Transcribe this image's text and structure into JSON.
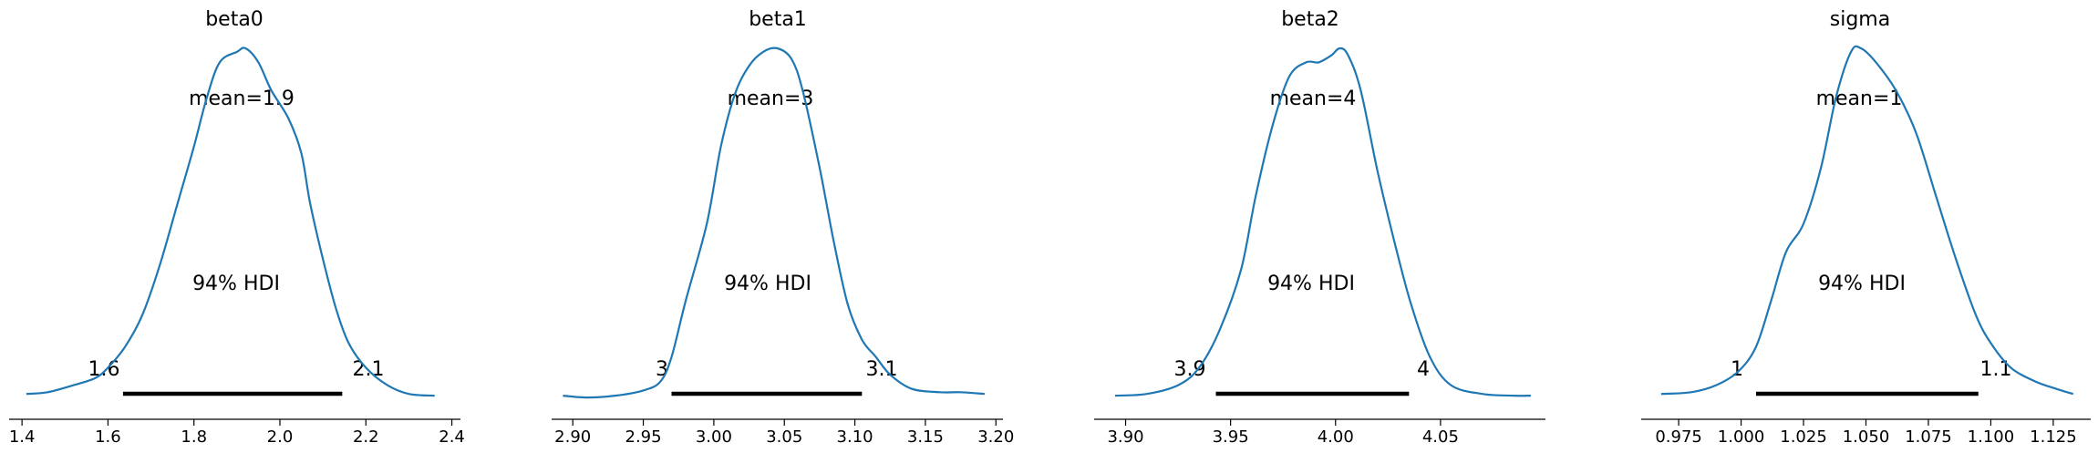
{
  "colors": {
    "kde": "#1f77b4",
    "hdi": "#000000",
    "axis": "#000000",
    "background": "#ffffff"
  },
  "chart_data": [
    {
      "type": "area",
      "title": "beta0",
      "mean_label": "mean=1.9",
      "hdi_label": "94% HDI",
      "hdi_low_label": "1.6",
      "hdi_high_label": "2.1",
      "hdi": [
        1.635,
        2.145
      ],
      "xlim": [
        1.37,
        2.42
      ],
      "xticks": [
        1.4,
        1.6,
        1.8,
        2.0,
        2.2,
        2.4
      ],
      "xtick_labels": [
        "1.4",
        "1.6",
        "1.8",
        "2.0",
        "2.2",
        "2.4"
      ],
      "density": [
        [
          1.41,
          0.015
        ],
        [
          1.46,
          0.02
        ],
        [
          1.52,
          0.04
        ],
        [
          1.57,
          0.06
        ],
        [
          1.6,
          0.09
        ],
        [
          1.64,
          0.15
        ],
        [
          1.68,
          0.24
        ],
        [
          1.72,
          0.38
        ],
        [
          1.76,
          0.55
        ],
        [
          1.8,
          0.72
        ],
        [
          1.83,
          0.86
        ],
        [
          1.86,
          0.96
        ],
        [
          1.9,
          0.99
        ],
        [
          1.92,
          1.0
        ],
        [
          1.95,
          0.96
        ],
        [
          1.98,
          0.88
        ],
        [
          2.02,
          0.8
        ],
        [
          2.05,
          0.7
        ],
        [
          2.07,
          0.56
        ],
        [
          2.1,
          0.4
        ],
        [
          2.13,
          0.26
        ],
        [
          2.16,
          0.16
        ],
        [
          2.2,
          0.09
        ],
        [
          2.25,
          0.04
        ],
        [
          2.3,
          0.015
        ],
        [
          2.36,
          0.01
        ]
      ]
    },
    {
      "type": "area",
      "title": "beta1",
      "mean_label": "mean=3",
      "hdi_label": "94% HDI",
      "hdi_low_label": "3",
      "hdi_high_label": "3.1",
      "hdi": [
        2.97,
        3.105
      ],
      "xlim": [
        2.885,
        3.205
      ],
      "xticks": [
        2.9,
        2.95,
        3.0,
        3.05,
        3.1,
        3.15,
        3.2
      ],
      "xtick_labels": [
        "2.90",
        "2.95",
        "3.00",
        "3.05",
        "3.10",
        "3.15",
        "3.20"
      ],
      "density": [
        [
          2.893,
          0.01
        ],
        [
          2.91,
          0.005
        ],
        [
          2.93,
          0.01
        ],
        [
          2.95,
          0.025
        ],
        [
          2.962,
          0.05
        ],
        [
          2.97,
          0.12
        ],
        [
          2.98,
          0.28
        ],
        [
          2.995,
          0.5
        ],
        [
          3.005,
          0.72
        ],
        [
          3.015,
          0.87
        ],
        [
          3.025,
          0.95
        ],
        [
          3.035,
          0.99
        ],
        [
          3.045,
          1.0
        ],
        [
          3.055,
          0.97
        ],
        [
          3.063,
          0.88
        ],
        [
          3.075,
          0.66
        ],
        [
          3.085,
          0.45
        ],
        [
          3.095,
          0.27
        ],
        [
          3.105,
          0.17
        ],
        [
          3.115,
          0.12
        ],
        [
          3.125,
          0.07
        ],
        [
          3.14,
          0.03
        ],
        [
          3.16,
          0.02
        ],
        [
          3.175,
          0.02
        ],
        [
          3.192,
          0.015
        ]
      ]
    },
    {
      "type": "area",
      "title": "beta2",
      "mean_label": "mean=4",
      "hdi_label": "94% HDI",
      "hdi_low_label": "3.9",
      "hdi_high_label": "4",
      "hdi": [
        3.943,
        4.035
      ],
      "xlim": [
        3.885,
        4.1
      ],
      "xticks": [
        3.9,
        3.95,
        4.0,
        4.05
      ],
      "xtick_labels": [
        "3.90",
        "3.95",
        "4.00",
        "4.05"
      ],
      "density": [
        [
          3.895,
          0.01
        ],
        [
          3.91,
          0.015
        ],
        [
          3.925,
          0.04
        ],
        [
          3.935,
          0.09
        ],
        [
          3.945,
          0.2
        ],
        [
          3.955,
          0.37
        ],
        [
          3.962,
          0.58
        ],
        [
          3.97,
          0.78
        ],
        [
          3.978,
          0.92
        ],
        [
          3.986,
          0.96
        ],
        [
          3.992,
          0.96
        ],
        [
          3.998,
          0.98
        ],
        [
          4.002,
          1.0
        ],
        [
          4.006,
          0.98
        ],
        [
          4.012,
          0.88
        ],
        [
          4.02,
          0.65
        ],
        [
          4.028,
          0.45
        ],
        [
          4.036,
          0.27
        ],
        [
          4.045,
          0.12
        ],
        [
          4.055,
          0.04
        ],
        [
          4.07,
          0.015
        ],
        [
          4.085,
          0.01
        ],
        [
          4.093,
          0.01
        ]
      ]
    },
    {
      "type": "area",
      "title": "sigma",
      "mean_label": "mean=1",
      "hdi_label": "94% HDI",
      "hdi_low_label": "1",
      "hdi_high_label": "1.1",
      "hdi": [
        1.006,
        1.095
      ],
      "xlim": [
        0.96,
        1.14
      ],
      "xticks": [
        0.975,
        1.0,
        1.025,
        1.05,
        1.075,
        1.1,
        1.125
      ],
      "xtick_labels": [
        "0.975",
        "1.000",
        "1.025",
        "1.050",
        "1.075",
        "1.100",
        "1.125"
      ],
      "density": [
        [
          0.968,
          0.015
        ],
        [
          0.98,
          0.02
        ],
        [
          0.99,
          0.04
        ],
        [
          0.999,
          0.08
        ],
        [
          1.006,
          0.15
        ],
        [
          1.012,
          0.28
        ],
        [
          1.018,
          0.42
        ],
        [
          1.025,
          0.5
        ],
        [
          1.032,
          0.66
        ],
        [
          1.038,
          0.86
        ],
        [
          1.044,
          0.99
        ],
        [
          1.048,
          1.0
        ],
        [
          1.054,
          0.96
        ],
        [
          1.062,
          0.88
        ],
        [
          1.07,
          0.76
        ],
        [
          1.078,
          0.58
        ],
        [
          1.086,
          0.4
        ],
        [
          1.094,
          0.24
        ],
        [
          1.1,
          0.16
        ],
        [
          1.108,
          0.09
        ],
        [
          1.118,
          0.05
        ],
        [
          1.126,
          0.03
        ],
        [
          1.133,
          0.015
        ]
      ]
    }
  ]
}
